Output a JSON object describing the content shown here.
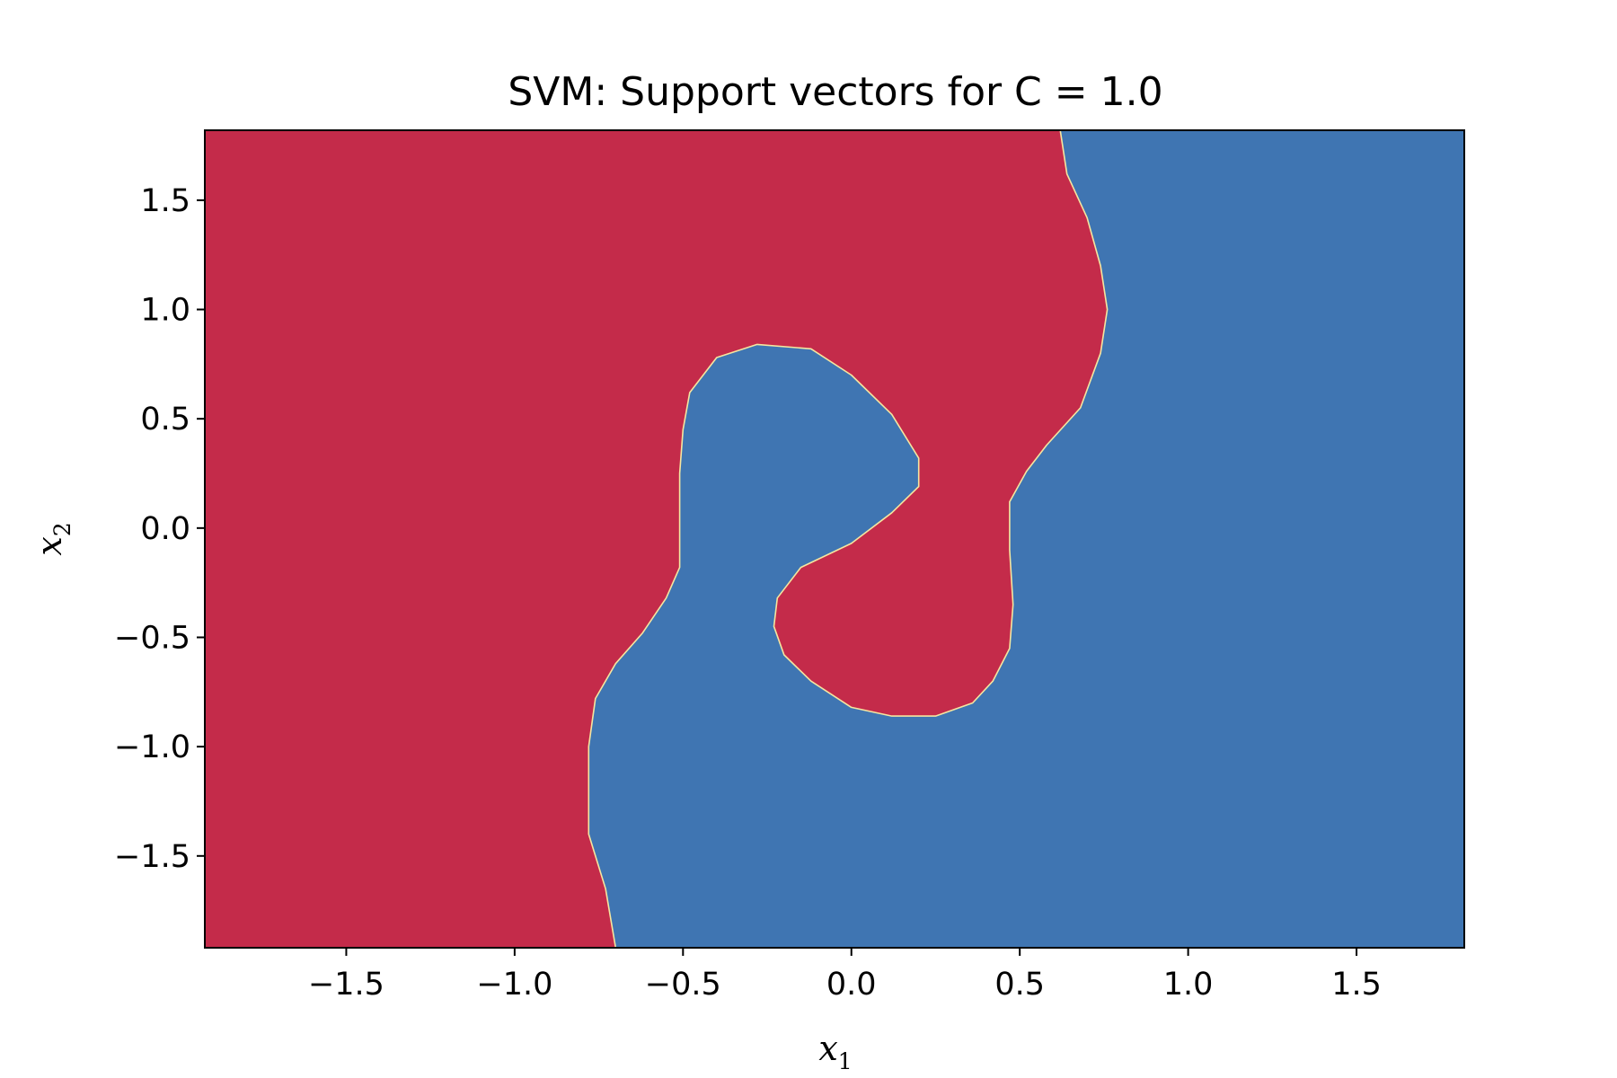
{
  "chart_data": {
    "type": "heatmap",
    "title": "SVM: Support vectors for C = 1.0",
    "xlabel": "x",
    "xlabel_sub": "1",
    "ylabel": "x",
    "ylabel_sub": "2",
    "xlim": [
      -1.92,
      1.82
    ],
    "ylim": [
      -1.92,
      1.82
    ],
    "x_ticks": [
      -1.5,
      -1.0,
      -0.5,
      0.0,
      0.5,
      1.0,
      1.5
    ],
    "x_tick_labels": [
      "−1.5",
      "−1.0",
      "−0.5",
      "0.0",
      "0.5",
      "1.0",
      "1.5"
    ],
    "y_ticks": [
      1.5,
      1.0,
      0.5,
      0.0,
      -0.5,
      -1.0,
      -1.5
    ],
    "y_tick_labels": [
      "1.5",
      "1.0",
      "0.5",
      "0.0",
      "−0.5",
      "−1.0",
      "−1.5"
    ],
    "grid": false,
    "classes": [
      {
        "color": "#c42b4a"
      },
      {
        "color": "#3f75b2"
      }
    ],
    "boundary_color": "#f5e6a0",
    "blue_region_outline": [
      [
        0.62,
        1.82
      ],
      [
        0.64,
        1.62
      ],
      [
        0.7,
        1.42
      ],
      [
        0.74,
        1.2
      ],
      [
        0.76,
        1.0
      ],
      [
        0.74,
        0.8
      ],
      [
        0.68,
        0.55
      ],
      [
        0.58,
        0.38
      ],
      [
        0.52,
        0.26
      ],
      [
        0.47,
        0.12
      ],
      [
        0.47,
        -0.1
      ],
      [
        0.48,
        -0.35
      ],
      [
        0.47,
        -0.55
      ],
      [
        0.42,
        -0.7
      ],
      [
        0.36,
        -0.8
      ],
      [
        0.25,
        -0.86
      ],
      [
        0.12,
        -0.86
      ],
      [
        0.0,
        -0.82
      ],
      [
        -0.12,
        -0.7
      ],
      [
        -0.2,
        -0.58
      ],
      [
        -0.23,
        -0.45
      ],
      [
        -0.22,
        -0.32
      ],
      [
        -0.15,
        -0.18
      ],
      [
        0.0,
        -0.07
      ],
      [
        0.12,
        0.07
      ],
      [
        0.2,
        0.19
      ],
      [
        0.2,
        0.32
      ],
      [
        0.12,
        0.52
      ],
      [
        0.0,
        0.7
      ],
      [
        -0.12,
        0.82
      ],
      [
        -0.28,
        0.84
      ],
      [
        -0.4,
        0.78
      ],
      [
        -0.48,
        0.62
      ],
      [
        -0.5,
        0.45
      ],
      [
        -0.51,
        0.25
      ],
      [
        -0.51,
        -0.18
      ],
      [
        -0.55,
        -0.32
      ],
      [
        -0.62,
        -0.48
      ],
      [
        -0.7,
        -0.62
      ],
      [
        -0.76,
        -0.78
      ],
      [
        -0.78,
        -1.0
      ],
      [
        -0.78,
        -1.4
      ],
      [
        -0.73,
        -1.65
      ],
      [
        -0.7,
        -1.92
      ],
      [
        1.82,
        -1.92
      ],
      [
        1.82,
        1.82
      ]
    ]
  }
}
